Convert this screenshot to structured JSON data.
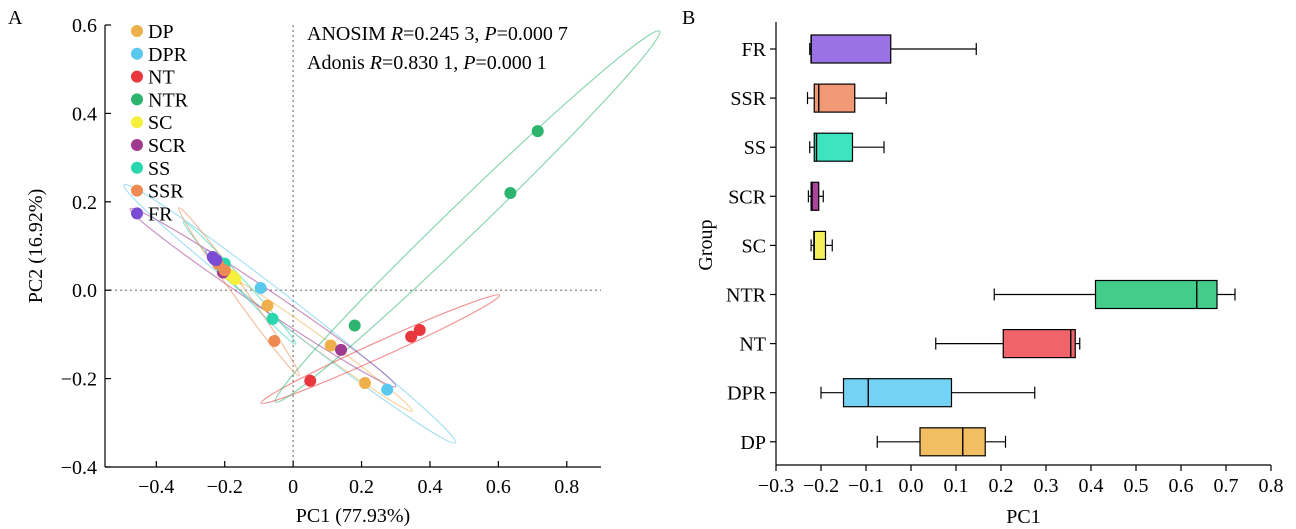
{
  "panels": {
    "a_letter": "A",
    "b_letter": "B"
  },
  "chart_data": [
    {
      "type": "scatter",
      "panel": "A",
      "xlabel": "PC1 (77.93%)",
      "ylabel": "PC2 (16.92%)",
      "xlim": [
        -0.55,
        0.9
      ],
      "ylim": [
        -0.4,
        0.6
      ],
      "xticks": [
        -0.4,
        -0.2,
        0,
        0.2,
        0.4,
        0.6,
        0.8
      ],
      "xtick_labels": [
        "−0.4",
        "−0.2",
        "0",
        "0.2",
        "0.4",
        "0.6",
        "0.8"
      ],
      "yticks": [
        -0.4,
        -0.2,
        0,
        0.2,
        0.4,
        0.6
      ],
      "ytick_labels": [
        "−0.4",
        "−0.2",
        "0.0",
        "0.2",
        "0.4",
        "0.6"
      ],
      "reference_lines": {
        "x": 0,
        "y": 0,
        "style": "dotted"
      },
      "stats": {
        "line1": {
          "name": "ANOSIM ",
          "r_sym": "R",
          "r_val": "=0.245 3, ",
          "p_sym": "P",
          "p_val": "=0.000 7"
        },
        "line2": {
          "name": "Adonis ",
          "r_sym": "R",
          "r_val": "=0.830 1, ",
          "p_sym": "P",
          "p_val": "=0.000 1"
        }
      },
      "legend_position": "top-left",
      "series": [
        {
          "name": "DP",
          "color": "#EDB04A",
          "points": [
            [
              -0.075,
              -0.035
            ],
            [
              0.11,
              -0.125
            ],
            [
              0.21,
              -0.21
            ]
          ]
        },
        {
          "name": "DPR",
          "color": "#5BC8EE",
          "points": [
            [
              -0.21,
              0.06
            ],
            [
              -0.095,
              0.005
            ],
            [
              0.275,
              -0.225
            ]
          ]
        },
        {
          "name": "NT",
          "color": "#E8383D",
          "points": [
            [
              0.05,
              -0.205
            ],
            [
              0.345,
              -0.105
            ],
            [
              0.37,
              -0.09
            ]
          ]
        },
        {
          "name": "NTR",
          "color": "#2DB46F",
          "points": [
            [
              0.18,
              -0.08
            ],
            [
              0.635,
              0.22
            ],
            [
              0.715,
              0.36
            ]
          ]
        },
        {
          "name": "SC",
          "color": "#F6F03C",
          "points": [
            [
              -0.185,
              0.035
            ],
            [
              -0.175,
              0.03
            ],
            [
              -0.17,
              0.025
            ]
          ]
        },
        {
          "name": "SCR",
          "color": "#A03A8E",
          "points": [
            [
              -0.205,
              0.04
            ],
            [
              -0.2,
              0.045
            ],
            [
              0.14,
              -0.135
            ]
          ]
        },
        {
          "name": "SS",
          "color": "#28D7AE",
          "points": [
            [
              -0.21,
              0.055
            ],
            [
              -0.06,
              -0.065
            ],
            [
              -0.2,
              0.06
            ]
          ]
        },
        {
          "name": "SSR",
          "color": "#EE8A52",
          "points": [
            [
              -0.22,
              0.06
            ],
            [
              -0.055,
              -0.115
            ],
            [
              -0.2,
              0.045
            ]
          ]
        },
        {
          "name": "FR",
          "color": "#7A4CD6",
          "points": [
            [
              -0.235,
              0.075
            ],
            [
              -0.23,
              0.07
            ],
            [
              -0.225,
              0.068
            ]
          ]
        }
      ]
    },
    {
      "type": "box",
      "panel": "B",
      "xlabel": "PC1",
      "ylabel": "Group",
      "orientation": "horizontal",
      "xlim": [
        -0.3,
        0.8
      ],
      "xticks": [
        -0.3,
        -0.2,
        -0.1,
        0,
        0.1,
        0.2,
        0.3,
        0.4,
        0.5,
        0.6,
        0.7,
        0.8
      ],
      "xtick_labels": [
        "−0.3",
        "−0.2",
        "−0.1",
        "0.0",
        "0.1",
        "0.2",
        "0.3",
        "0.4",
        "0.5",
        "0.6",
        "0.7",
        "0.8"
      ],
      "categories": [
        "FR",
        "SSR",
        "SS",
        "SCR",
        "SC",
        "NTR",
        "NT",
        "DPR",
        "DP"
      ],
      "boxes": [
        {
          "group": "FR",
          "color": "#9B72E6",
          "whisker_low": -0.225,
          "q1": -0.222,
          "median": -0.222,
          "q3": -0.045,
          "whisker_high": 0.145
        },
        {
          "group": "SSR",
          "color": "#F19A75",
          "whisker_low": -0.23,
          "q1": -0.215,
          "median": -0.205,
          "q3": -0.125,
          "whisker_high": -0.055
        },
        {
          "group": "SS",
          "color": "#3EE3C0",
          "whisker_low": -0.225,
          "q1": -0.215,
          "median": -0.21,
          "q3": -0.13,
          "whisker_high": -0.06
        },
        {
          "group": "SCR",
          "color": "#A9459A",
          "whisker_low": -0.228,
          "q1": -0.222,
          "median": -0.22,
          "q3": -0.205,
          "whisker_high": -0.195
        },
        {
          "group": "SC",
          "color": "#F4F05A",
          "whisker_low": -0.222,
          "q1": -0.216,
          "median": -0.215,
          "q3": -0.19,
          "whisker_high": -0.175
        },
        {
          "group": "NTR",
          "color": "#43CC8A",
          "whisker_low": 0.185,
          "q1": 0.41,
          "median": 0.635,
          "q3": 0.68,
          "whisker_high": 0.72
        },
        {
          "group": "NT",
          "color": "#F1656A",
          "whisker_low": 0.055,
          "q1": 0.205,
          "median": 0.355,
          "q3": 0.365,
          "whisker_high": 0.375
        },
        {
          "group": "DPR",
          "color": "#74D3F5",
          "whisker_low": -0.2,
          "q1": -0.15,
          "median": -0.095,
          "q3": 0.09,
          "whisker_high": 0.275
        },
        {
          "group": "DP",
          "color": "#F2BE62",
          "whisker_low": -0.075,
          "q1": 0.02,
          "median": 0.115,
          "q3": 0.165,
          "whisker_high": 0.21
        }
      ]
    }
  ]
}
